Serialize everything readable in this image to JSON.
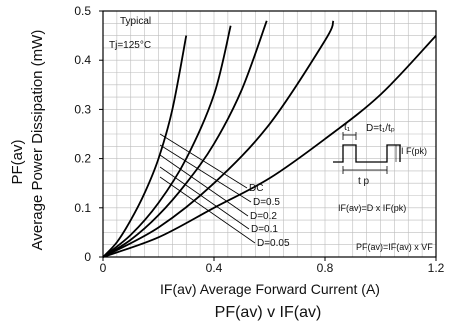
{
  "chart_data": {
    "type": "line",
    "title": "PF(av) v IF(av)",
    "xlabel": "IF(av) Average Forward Current (A)",
    "ylabel_top": "PF(av)",
    "ylabel": "Average Power Dissipation (mW)",
    "xlim": [
      0,
      1.2
    ],
    "ylim": [
      0,
      0.5
    ],
    "x_ticks": [
      0,
      0.4,
      0.8,
      1.2
    ],
    "x_tick_labels": [
      "0",
      "0.4",
      "0.8",
      "1.2"
    ],
    "y_ticks": [
      0,
      0.1,
      0.2,
      0.3,
      0.4,
      0.5
    ],
    "y_tick_labels": [
      "0",
      "0.1",
      "0.2",
      "0.3",
      "0.4",
      "0.5"
    ],
    "grid": true,
    "annotations": {
      "typical": "Typical",
      "tj": "Tj=125°C",
      "formula_d": "D=t₁/tₚ",
      "t1": "t₁",
      "tp": "t p",
      "ifpk": "I F(pk)",
      "formula_ifav": "IF(av)=D x IF(pk)",
      "formula_pfav": "PF(av)=IF(av) x VF"
    },
    "series": [
      {
        "name": "D=0.05",
        "x": [
          0,
          0.05,
          0.1,
          0.15,
          0.2,
          0.25,
          0.3
        ],
        "y": [
          0,
          0.03,
          0.075,
          0.13,
          0.2,
          0.3,
          0.45
        ]
      },
      {
        "name": "D=0.1",
        "x": [
          0,
          0.1,
          0.2,
          0.3,
          0.4,
          0.46
        ],
        "y": [
          0,
          0.045,
          0.11,
          0.2,
          0.33,
          0.47
        ]
      },
      {
        "name": "D=0.2",
        "x": [
          0,
          0.1,
          0.2,
          0.3,
          0.4,
          0.5,
          0.59
        ],
        "y": [
          0,
          0.035,
          0.085,
          0.15,
          0.23,
          0.34,
          0.48
        ]
      },
      {
        "name": "D=0.5",
        "x": [
          0,
          0.2,
          0.4,
          0.6,
          0.8,
          0.83
        ],
        "y": [
          0,
          0.06,
          0.15,
          0.27,
          0.44,
          0.48
        ]
      },
      {
        "name": "DC",
        "x": [
          0,
          0.2,
          0.4,
          0.6,
          0.8,
          1.0,
          1.2
        ],
        "y": [
          0,
          0.04,
          0.1,
          0.16,
          0.24,
          0.33,
          0.45
        ]
      }
    ],
    "series_label_order": [
      "DC",
      "D=0.5",
      "D=0.2",
      "D=0.1",
      "D=0.05"
    ]
  }
}
